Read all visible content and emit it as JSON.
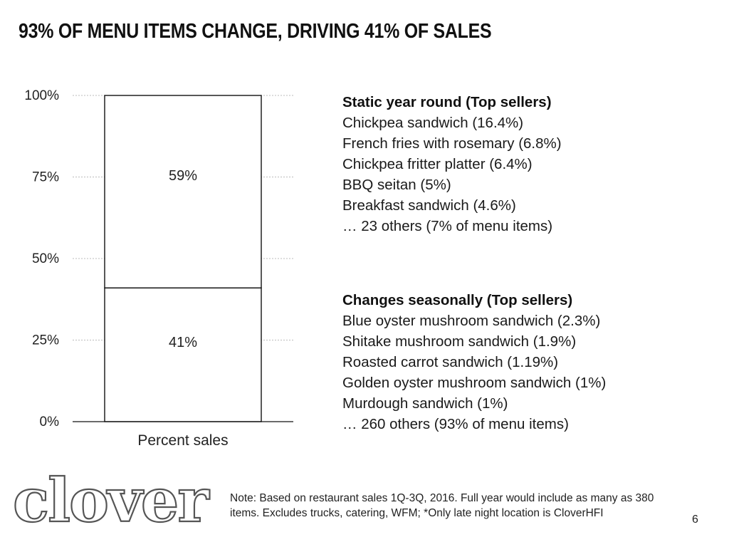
{
  "title": "93% OF MENU ITEMS CHANGE, DRIVING 41% OF SALES",
  "chart_data": {
    "type": "bar",
    "stacked": true,
    "categories": [
      "Percent sales"
    ],
    "series": [
      {
        "values": [
          41
        ],
        "label": "41%"
      },
      {
        "values": [
          59
        ],
        "label": "59%"
      }
    ],
    "xlabel": "",
    "ylabel": "",
    "ylim": [
      0,
      100
    ],
    "yticks": [
      0,
      25,
      50,
      75,
      100
    ],
    "ytick_labels": [
      "0%",
      "25%",
      "50%",
      "75%",
      "100%"
    ],
    "grid": true,
    "bar_fill": "#ffffff",
    "bar_stroke": "#111111",
    "grid_color": "#bbbbbb"
  },
  "static_list": {
    "heading": "Static year round (Top sellers)",
    "items": [
      "Chickpea sandwich (16.4%)",
      "French fries with rosemary (6.8%)",
      "Chickpea fritter platter (6.4%)",
      "BBQ seitan (5%)",
      "Breakfast sandwich (4.6%)",
      "… 23 others (7% of menu items)"
    ]
  },
  "seasonal_list": {
    "heading": "Changes seasonally (Top sellers)",
    "items": [
      "Blue oyster mushroom sandwich (2.3%)",
      "Shitake mushroom sandwich (1.9%)",
      "Roasted carrot sandwich (1.19%)",
      "Golden oyster mushroom sandwich (1%)",
      "Murdough sandwich (1%)",
      "… 260 others (93% of menu items)"
    ]
  },
  "logo": {
    "text": "clover"
  },
  "note": "Note: Based on restaurant sales 1Q-3Q, 2016. Full year would include as many as 380 items. Excludes trucks, catering, WFM; *Only late night location is CloverHFI",
  "page_number": "6"
}
